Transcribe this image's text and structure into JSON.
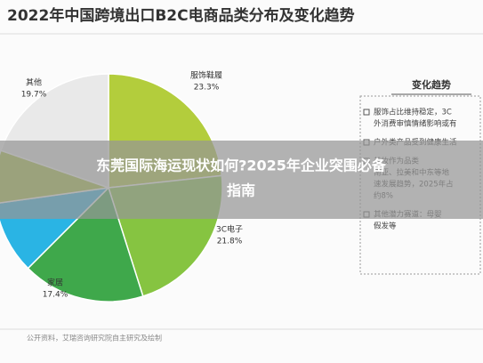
{
  "chart_data": {
    "type": "pie",
    "title": "2022年中国跨境出口B2C电商品类分布及变化趋势",
    "categories": [
      "服饰鞋履",
      "3C电子",
      "家居",
      null,
      null,
      "其他"
    ],
    "values": [
      23.3,
      21.8,
      17.4,
      10.3,
      7.5,
      19.7
    ],
    "value_labels": [
      "23.3%",
      "21.8%",
      "17.4%",
      null,
      null,
      "19.7%"
    ],
    "colors": [
      "#b3cd3c",
      "#86c441",
      "#3fa84b",
      "#2ab4e4",
      "#a9c23a",
      "#e9e9e9"
    ],
    "source": "公开资料，艾瑞咨询研究院自主研究及绘制"
  },
  "side_panel": {
    "heading": "变化趋势",
    "items": [
      [
        "服饰占比维持稳定，3C",
        "外消费审慎情绪影响或有"
      ],
      [
        "户外类产品受到健康生活"
      ],
      [
        "美妆作为品类",
        "南亚、拉美和中东等地",
        "速发展趋势，2025年占",
        "约8%"
      ],
      [
        "其他潜力赛道：母婴",
        "假发等"
      ]
    ]
  },
  "banner": {
    "lines": [
      "东莞国际海运现状如何?2025年企业突围必备",
      "指南"
    ]
  }
}
